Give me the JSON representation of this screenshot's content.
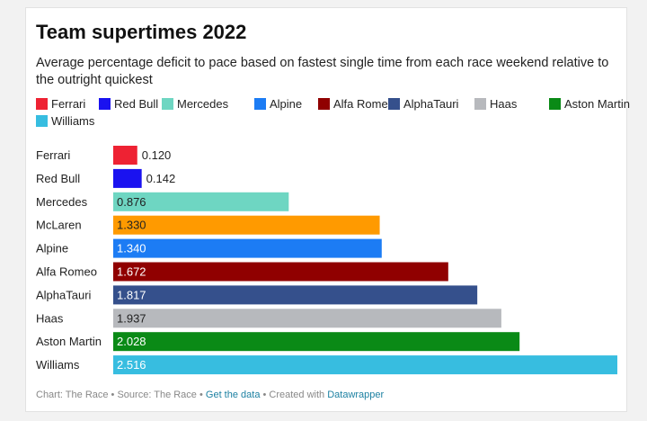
{
  "title": "Team supertimes 2022",
  "subtitle": "Average percentage deficit to pace based on fastest single time from each race weekend relative to the outright quickest",
  "legend": [
    {
      "label": "Ferrari",
      "color": "#ee2233"
    },
    {
      "label": "Red Bull",
      "color": "#1a12f0"
    },
    {
      "label": "Mercedes",
      "color": "#6ed6c2"
    },
    {
      "label": "Alpine",
      "color": "#1c7cf4"
    },
    {
      "label": "Alfa Romeo",
      "color": "#900000"
    },
    {
      "label": "AlphaTauri",
      "color": "#35508c"
    },
    {
      "label": "Haas",
      "color": "#b7b9bd"
    },
    {
      "label": "Aston Martin",
      "color": "#0a8a16"
    },
    {
      "label": "Williams",
      "color": "#37bde0"
    }
  ],
  "chart_data": {
    "type": "bar",
    "orientation": "horizontal",
    "categories": [
      "Ferrari",
      "Red Bull",
      "Mercedes",
      "McLaren",
      "Alpine",
      "Alfa Romeo",
      "AlphaTauri",
      "Haas",
      "Aston Martin",
      "Williams"
    ],
    "values": [
      0.12,
      0.142,
      0.876,
      1.33,
      1.34,
      1.672,
      1.817,
      1.937,
      2.028,
      2.516
    ],
    "value_labels": [
      "0.120",
      "0.142",
      "0.876",
      "1.330",
      "1.340",
      "1.672",
      "1.817",
      "1.937",
      "2.028",
      "2.516"
    ],
    "colors": [
      "#ee2233",
      "#1a12f0",
      "#6ed6c2",
      "#ff9a00",
      "#1c7cf4",
      "#900000",
      "#35508c",
      "#b7b9bd",
      "#0a8a16",
      "#37bde0"
    ],
    "label_colors": [
      "#222222",
      "#222222",
      "#222222",
      "#222222",
      "#ffffff",
      "#ffffff",
      "#ffffff",
      "#222222",
      "#ffffff",
      "#ffffff"
    ],
    "xlim": [
      0,
      2.516
    ],
    "grid": false,
    "legend_position": "top"
  },
  "footer": {
    "prefix": "Chart: The Race • Source: The Race • ",
    "get_data": "Get the data",
    "middle": " • Created with ",
    "tool": "Datawrapper"
  }
}
